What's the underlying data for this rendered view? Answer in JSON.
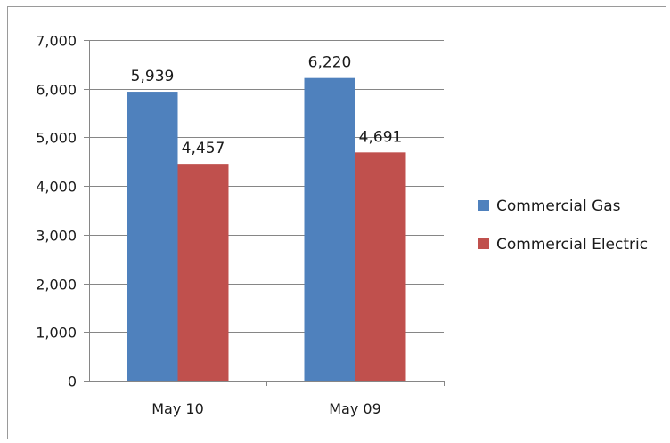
{
  "chart_data": {
    "type": "bar",
    "title": "",
    "xlabel": "",
    "ylabel": "",
    "categories": [
      "May 10",
      "May 09"
    ],
    "series": [
      {
        "name": "Commercial Gas",
        "values": [
          5939,
          6220
        ],
        "labels": [
          "5,939",
          "6,220"
        ],
        "color": "#4f81bd"
      },
      {
        "name": "Commercial Electric",
        "values": [
          4457,
          4691
        ],
        "labels": [
          "4,457",
          "4,691"
        ],
        "color": "#c0504d"
      }
    ],
    "ylim": [
      0,
      7000
    ],
    "yticks": [
      0,
      1000,
      2000,
      3000,
      4000,
      5000,
      6000,
      7000
    ],
    "ytick_labels": [
      "0",
      "1,000",
      "2,000",
      "3,000",
      "4,000",
      "5,000",
      "6,000",
      "7,000"
    ],
    "grid": true,
    "legend": "right"
  }
}
